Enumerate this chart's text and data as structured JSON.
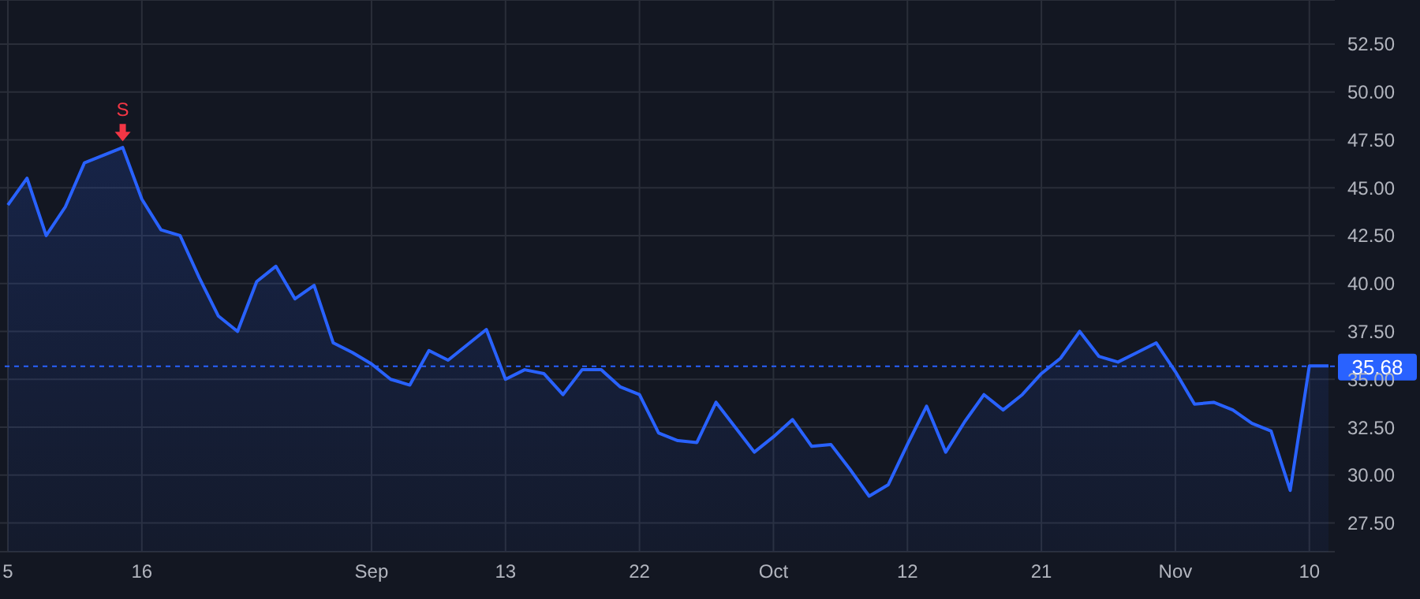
{
  "chart_data": {
    "type": "area",
    "categories": [
      "5",
      null,
      null,
      null,
      null,
      null,
      null,
      "16",
      null,
      null,
      null,
      null,
      null,
      null,
      null,
      null,
      null,
      null,
      null,
      "Sep",
      null,
      null,
      null,
      null,
      null,
      null,
      "13",
      null,
      null,
      null,
      null,
      null,
      null,
      "22",
      null,
      null,
      null,
      null,
      null,
      null,
      "Oct",
      null,
      null,
      null,
      null,
      null,
      null,
      "12",
      null,
      null,
      null,
      null,
      null,
      null,
      "21",
      null,
      null,
      null,
      null,
      null,
      null,
      "Nov",
      null,
      null,
      null,
      null,
      null,
      null,
      "10",
      null
    ],
    "series": [
      {
        "color": "#2962ff",
        "values": [
          44.1,
          45.5,
          42.5,
          44.0,
          46.3,
          46.7,
          47.1,
          44.4,
          42.8,
          42.5,
          40.3,
          38.3,
          37.5,
          40.1,
          40.9,
          39.2,
          39.9,
          36.9,
          36.4,
          35.8,
          35.0,
          34.7,
          36.5,
          36.0,
          36.8,
          37.6,
          35.0,
          35.5,
          35.3,
          34.2,
          35.5,
          35.5,
          34.6,
          34.2,
          32.2,
          31.8,
          31.7,
          33.8,
          32.5,
          31.2,
          32.0,
          32.9,
          31.5,
          31.6,
          30.3,
          28.9,
          29.5,
          31.6,
          33.6,
          31.2,
          32.8,
          34.2,
          33.4,
          34.2,
          35.3,
          36.1,
          37.5,
          36.2,
          35.9,
          36.4,
          36.9,
          35.4,
          33.7,
          33.8,
          33.4,
          32.7,
          32.3,
          29.2,
          35.7,
          35.7
        ]
      }
    ],
    "ylim": [
      26,
      54.8
    ],
    "yticks": [
      {
        "value": 27.5,
        "label": "27.50"
      },
      {
        "value": 30,
        "label": "30.00"
      },
      {
        "value": 32.5,
        "label": "32.50"
      },
      {
        "value": 35,
        "label": "35.00"
      },
      {
        "value": 37.5,
        "label": "37.50"
      },
      {
        "value": 40,
        "label": "40.00"
      },
      {
        "value": 42.5,
        "label": "42.50"
      },
      {
        "value": 45,
        "label": "45.00"
      },
      {
        "value": 47.5,
        "label": "47.50"
      },
      {
        "value": 50,
        "label": "50.00"
      },
      {
        "value": 52.5,
        "label": "52.50"
      }
    ],
    "grid": true,
    "ref_lines": [
      {
        "axis": "y",
        "value": 35.68,
        "label": "35.68",
        "color": "#2962ff",
        "line_style": "dashed"
      }
    ],
    "annotations": [
      {
        "text": "S",
        "y": 47.1
      }
    ]
  }
}
